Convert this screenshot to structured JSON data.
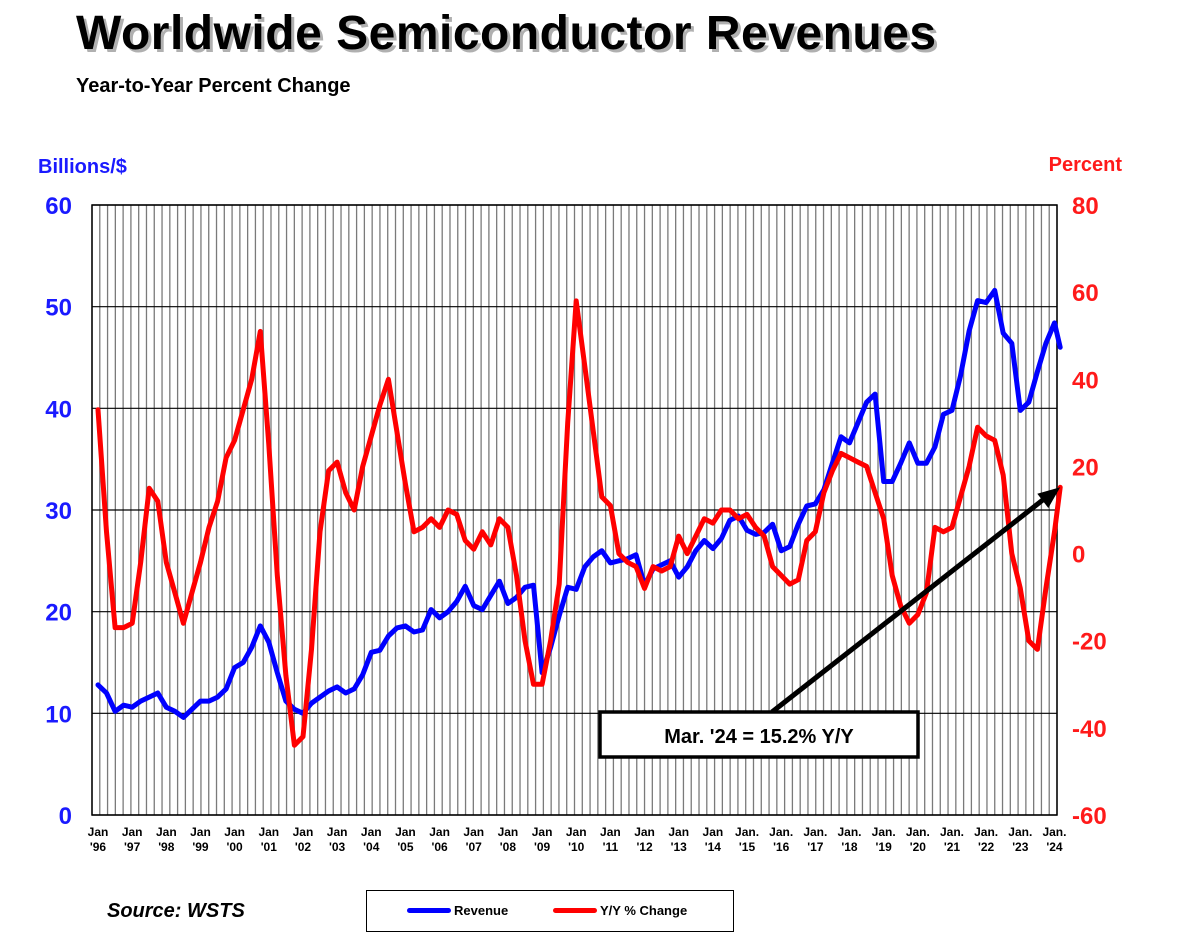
{
  "title": "Worldwide Semiconductor Revenues",
  "subtitle": "Year-to-Year Percent Change",
  "source": "Source: WSTS",
  "chart_data": {
    "type": "line",
    "title": "Worldwide Semiconductor Revenues",
    "subtitle": "Year-to-Year Percent Change",
    "ylabel_left": "Billions/$",
    "ylabel_right": "Percent",
    "ylim_left": [
      0,
      60
    ],
    "ylim_right": [
      -60,
      80
    ],
    "yticks_left": [
      0,
      10,
      20,
      30,
      40,
      50,
      60
    ],
    "yticks_right": [
      -60,
      -40,
      -20,
      0,
      20,
      40,
      60,
      80
    ],
    "grid": "on",
    "x_labels": [
      {
        "line1": "Jan",
        "line2": "'96"
      },
      {
        "line1": "Jan",
        "line2": "'97"
      },
      {
        "line1": "Jan",
        "line2": "'98"
      },
      {
        "line1": "Jan",
        "line2": "'99"
      },
      {
        "line1": "Jan",
        "line2": "'00"
      },
      {
        "line1": "Jan",
        "line2": "'01"
      },
      {
        "line1": "Jan",
        "line2": "'02"
      },
      {
        "line1": "Jan",
        "line2": "'03"
      },
      {
        "line1": "Jan",
        "line2": "'04"
      },
      {
        "line1": "Jan",
        "line2": "'05"
      },
      {
        "line1": "Jan",
        "line2": "'06"
      },
      {
        "line1": "Jan",
        "line2": "'07"
      },
      {
        "line1": "Jan",
        "line2": "'08"
      },
      {
        "line1": "Jan",
        "line2": "'09"
      },
      {
        "line1": "Jan",
        "line2": "'10"
      },
      {
        "line1": "Jan",
        "line2": "'11"
      },
      {
        "line1": "Jan",
        "line2": "'12"
      },
      {
        "line1": "Jan",
        "line2": "'13"
      },
      {
        "line1": "Jan",
        "line2": "'14"
      },
      {
        "line1": "Jan.",
        "line2": "'15"
      },
      {
        "line1": "Jan.",
        "line2": "'16"
      },
      {
        "line1": "Jan.",
        "line2": "'17"
      },
      {
        "line1": "Jan.",
        "line2": "'18"
      },
      {
        "line1": "Jan.",
        "line2": "'19"
      },
      {
        "line1": "Jan.",
        "line2": "'20"
      },
      {
        "line1": "Jan.",
        "line2": "'21"
      },
      {
        "line1": "Jan.",
        "line2": "'22"
      },
      {
        "line1": "Jan.",
        "line2": "'23"
      },
      {
        "line1": "Jan.",
        "line2": "'24"
      }
    ],
    "series": [
      {
        "name": "Revenue",
        "axis": "left",
        "color": "#0000ff",
        "points": [
          [
            "1996-01",
            12.8
          ],
          [
            "1996-04",
            12.0
          ],
          [
            "1996-07",
            10.2
          ],
          [
            "1996-10",
            10.8
          ],
          [
            "1997-01",
            10.6
          ],
          [
            "1997-04",
            11.2
          ],
          [
            "1997-07",
            11.6
          ],
          [
            "1997-10",
            12.0
          ],
          [
            "1998-01",
            10.6
          ],
          [
            "1998-04",
            10.2
          ],
          [
            "1998-07",
            9.6
          ],
          [
            "1998-10",
            10.4
          ],
          [
            "1999-01",
            11.2
          ],
          [
            "1999-04",
            11.2
          ],
          [
            "1999-07",
            11.6
          ],
          [
            "1999-10",
            12.4
          ],
          [
            "2000-01",
            14.5
          ],
          [
            "2000-04",
            15.0
          ],
          [
            "2000-07",
            16.5
          ],
          [
            "2000-10",
            18.6
          ],
          [
            "2001-01",
            17.0
          ],
          [
            "2001-04",
            14.0
          ],
          [
            "2001-07",
            11.2
          ],
          [
            "2001-10",
            10.4
          ],
          [
            "2002-01",
            10.0
          ],
          [
            "2002-04",
            11.0
          ],
          [
            "2002-07",
            11.6
          ],
          [
            "2002-10",
            12.2
          ],
          [
            "2003-01",
            12.6
          ],
          [
            "2003-04",
            12.0
          ],
          [
            "2003-07",
            12.4
          ],
          [
            "2003-10",
            13.8
          ],
          [
            "2004-01",
            16.0
          ],
          [
            "2004-04",
            16.2
          ],
          [
            "2004-07",
            17.6
          ],
          [
            "2004-10",
            18.4
          ],
          [
            "2005-01",
            18.6
          ],
          [
            "2005-04",
            18.0
          ],
          [
            "2005-07",
            18.2
          ],
          [
            "2005-10",
            20.2
          ],
          [
            "2006-01",
            19.4
          ],
          [
            "2006-04",
            20.0
          ],
          [
            "2006-07",
            21.0
          ],
          [
            "2006-10",
            22.5
          ],
          [
            "2007-01",
            20.6
          ],
          [
            "2007-04",
            20.2
          ],
          [
            "2007-07",
            21.6
          ],
          [
            "2007-10",
            23.0
          ],
          [
            "2008-01",
            20.8
          ],
          [
            "2008-04",
            21.4
          ],
          [
            "2008-07",
            22.4
          ],
          [
            "2008-10",
            22.6
          ],
          [
            "2009-01",
            14.0
          ],
          [
            "2009-04",
            16.5
          ],
          [
            "2009-07",
            19.6
          ],
          [
            "2009-10",
            22.4
          ],
          [
            "2010-01",
            22.2
          ],
          [
            "2010-04",
            24.4
          ],
          [
            "2010-07",
            25.4
          ],
          [
            "2010-10",
            26.0
          ],
          [
            "2011-01",
            24.8
          ],
          [
            "2011-04",
            25.0
          ],
          [
            "2011-07",
            25.2
          ],
          [
            "2011-10",
            25.6
          ],
          [
            "2012-01",
            22.6
          ],
          [
            "2012-04",
            24.2
          ],
          [
            "2012-07",
            24.6
          ],
          [
            "2012-10",
            25.0
          ],
          [
            "2013-01",
            23.4
          ],
          [
            "2013-04",
            24.4
          ],
          [
            "2013-07",
            26.0
          ],
          [
            "2013-10",
            27.0
          ],
          [
            "2014-01",
            26.2
          ],
          [
            "2014-04",
            27.2
          ],
          [
            "2014-07",
            29.0
          ],
          [
            "2014-10",
            29.4
          ],
          [
            "2015-01",
            28.0
          ],
          [
            "2015-04",
            27.6
          ],
          [
            "2015-07",
            27.8
          ],
          [
            "2015-10",
            28.6
          ],
          [
            "2016-01",
            26.0
          ],
          [
            "2016-04",
            26.4
          ],
          [
            "2016-07",
            28.6
          ],
          [
            "2016-10",
            30.4
          ],
          [
            "2017-01",
            30.6
          ],
          [
            "2017-04",
            32.0
          ],
          [
            "2017-07",
            34.6
          ],
          [
            "2017-10",
            37.2
          ],
          [
            "2018-01",
            36.6
          ],
          [
            "2018-04",
            38.6
          ],
          [
            "2018-07",
            40.6
          ],
          [
            "2018-10",
            41.4
          ],
          [
            "2019-01",
            32.8
          ],
          [
            "2019-04",
            32.8
          ],
          [
            "2019-07",
            34.6
          ],
          [
            "2019-10",
            36.6
          ],
          [
            "2020-01",
            34.6
          ],
          [
            "2020-04",
            34.6
          ],
          [
            "2020-07",
            36.2
          ],
          [
            "2020-10",
            39.4
          ],
          [
            "2021-01",
            39.8
          ],
          [
            "2021-04",
            43.2
          ],
          [
            "2021-07",
            47.6
          ],
          [
            "2021-10",
            50.6
          ],
          [
            "2022-01",
            50.4
          ],
          [
            "2022-04",
            51.6
          ],
          [
            "2022-07",
            47.4
          ],
          [
            "2022-10",
            46.4
          ],
          [
            "2023-01",
            39.8
          ],
          [
            "2023-04",
            40.6
          ],
          [
            "2023-07",
            43.6
          ],
          [
            "2023-10",
            46.4
          ],
          [
            "2024-01",
            48.4
          ],
          [
            "2024-03",
            46.0
          ]
        ]
      },
      {
        "name": "Y/Y % Change",
        "axis": "right",
        "color": "#ff0000",
        "points": [
          [
            "1996-01",
            33
          ],
          [
            "1996-04",
            5
          ],
          [
            "1996-07",
            -17
          ],
          [
            "1996-10",
            -17
          ],
          [
            "1997-01",
            -16
          ],
          [
            "1997-04",
            -2
          ],
          [
            "1997-07",
            15
          ],
          [
            "1997-10",
            12
          ],
          [
            "1998-01",
            -2
          ],
          [
            "1998-04",
            -9
          ],
          [
            "1998-07",
            -16
          ],
          [
            "1998-10",
            -9
          ],
          [
            "1999-01",
            -2
          ],
          [
            "1999-04",
            6
          ],
          [
            "1999-07",
            12
          ],
          [
            "1999-10",
            22
          ],
          [
            "2000-01",
            26
          ],
          [
            "2000-04",
            33
          ],
          [
            "2000-07",
            40
          ],
          [
            "2000-10",
            51
          ],
          [
            "2001-01",
            25
          ],
          [
            "2001-04",
            -5
          ],
          [
            "2001-07",
            -28
          ],
          [
            "2001-10",
            -44
          ],
          [
            "2002-01",
            -42
          ],
          [
            "2002-04",
            -22
          ],
          [
            "2002-07",
            5
          ],
          [
            "2002-10",
            19
          ],
          [
            "2003-01",
            21
          ],
          [
            "2003-04",
            14
          ],
          [
            "2003-07",
            10
          ],
          [
            "2003-10",
            20
          ],
          [
            "2004-01",
            27
          ],
          [
            "2004-04",
            34
          ],
          [
            "2004-07",
            40
          ],
          [
            "2004-10",
            28
          ],
          [
            "2005-01",
            16
          ],
          [
            "2005-04",
            5
          ],
          [
            "2005-07",
            6
          ],
          [
            "2005-10",
            8
          ],
          [
            "2006-01",
            6
          ],
          [
            "2006-04",
            10
          ],
          [
            "2006-07",
            9
          ],
          [
            "2006-10",
            3
          ],
          [
            "2007-01",
            1
          ],
          [
            "2007-04",
            5
          ],
          [
            "2007-07",
            2
          ],
          [
            "2007-10",
            8
          ],
          [
            "2008-01",
            6
          ],
          [
            "2008-04",
            -5
          ],
          [
            "2008-07",
            -20
          ],
          [
            "2008-10",
            -30
          ],
          [
            "2009-01",
            -30
          ],
          [
            "2009-04",
            -20
          ],
          [
            "2009-07",
            -7
          ],
          [
            "2009-10",
            30
          ],
          [
            "2010-01",
            58
          ],
          [
            "2010-04",
            43
          ],
          [
            "2010-07",
            28
          ],
          [
            "2010-10",
            13
          ],
          [
            "2011-01",
            11
          ],
          [
            "2011-04",
            0
          ],
          [
            "2011-07",
            -2
          ],
          [
            "2011-10",
            -3
          ],
          [
            "2012-01",
            -8
          ],
          [
            "2012-04",
            -3
          ],
          [
            "2012-07",
            -4
          ],
          [
            "2012-10",
            -3
          ],
          [
            "2013-01",
            4
          ],
          [
            "2013-04",
            0
          ],
          [
            "2013-07",
            4
          ],
          [
            "2013-10",
            8
          ],
          [
            "2014-01",
            7
          ],
          [
            "2014-04",
            10
          ],
          [
            "2014-07",
            10
          ],
          [
            "2014-10",
            8
          ],
          [
            "2015-01",
            9
          ],
          [
            "2015-04",
            6
          ],
          [
            "2015-07",
            4
          ],
          [
            "2015-10",
            -3
          ],
          [
            "2016-01",
            -5
          ],
          [
            "2016-04",
            -7
          ],
          [
            "2016-07",
            -6
          ],
          [
            "2016-10",
            3
          ],
          [
            "2017-01",
            5
          ],
          [
            "2017-04",
            14
          ],
          [
            "2017-07",
            19
          ],
          [
            "2017-10",
            23
          ],
          [
            "2018-01",
            22
          ],
          [
            "2018-04",
            21
          ],
          [
            "2018-07",
            20
          ],
          [
            "2018-10",
            14
          ],
          [
            "2019-01",
            8
          ],
          [
            "2019-04",
            -5
          ],
          [
            "2019-07",
            -12
          ],
          [
            "2019-10",
            -16
          ],
          [
            "2020-01",
            -14
          ],
          [
            "2020-04",
            -9
          ],
          [
            "2020-07",
            6
          ],
          [
            "2020-10",
            5
          ],
          [
            "2021-01",
            6
          ],
          [
            "2021-04",
            13
          ],
          [
            "2021-07",
            20
          ],
          [
            "2021-10",
            29
          ],
          [
            "2022-01",
            27
          ],
          [
            "2022-04",
            26
          ],
          [
            "2022-07",
            18
          ],
          [
            "2022-10",
            0
          ],
          [
            "2023-01",
            -8
          ],
          [
            "2023-04",
            -20
          ],
          [
            "2023-07",
            -22
          ],
          [
            "2023-10",
            -8
          ],
          [
            "2024-01",
            5
          ],
          [
            "2024-03",
            15.2
          ]
        ]
      }
    ],
    "annotation": {
      "text": "Mar. '24 = 15.2% Y/Y",
      "points_to": [
        "2024-03",
        15.2
      ]
    },
    "legend": {
      "items": [
        "Revenue",
        "Y/Y % Change"
      ],
      "position": "bottom-center"
    }
  }
}
